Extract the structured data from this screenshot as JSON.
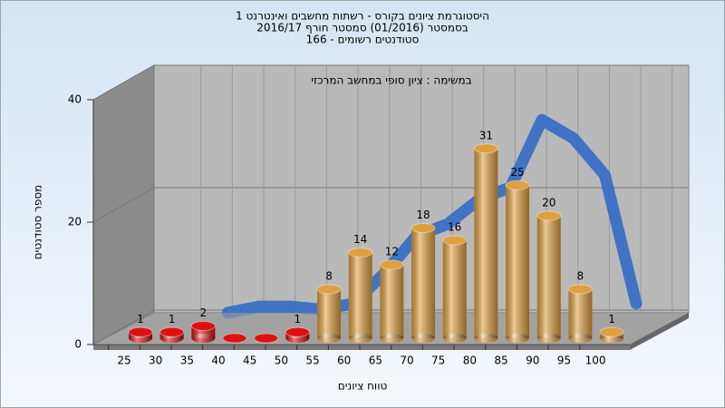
{
  "chart_data": {
    "type": "bar",
    "title": [
      "היסטוגרמת ציונים בקורס - רשתות מחשבים ואינטרנט 1",
      "בסמסטר  (01/2016)  סמסטר חורף 2016/17",
      "סטודנטים רשומים - 166"
    ],
    "annotation": "במשימה : ציון סופי במחשב המרכזי",
    "x_label": "טווח ציונים",
    "y_label": "מספר סטודנטים",
    "categories": [
      "25",
      "30",
      "35",
      "40",
      "45",
      "50",
      "55",
      "60",
      "65",
      "70",
      "75",
      "80",
      "85",
      "90",
      "95",
      "100"
    ],
    "values": [
      1,
      1,
      2,
      0,
      0,
      1,
      8,
      14,
      12,
      18,
      16,
      31,
      25,
      20,
      8,
      1
    ],
    "bar_colors": [
      "#e01010",
      "#e01010",
      "#e01010",
      "#e01010",
      "#e01010",
      "#e01010",
      "#e0a040",
      "#e0a040",
      "#e0a040",
      "#e0a040",
      "#e0a040",
      "#e0a040",
      "#e0a040",
      "#e0a040",
      "#e0a040",
      "#e0a040"
    ],
    "curve": {
      "color": "#3a6fc4",
      "values": [
        null,
        null,
        1.5,
        2.5,
        2.5,
        2,
        3,
        8,
        14,
        16,
        20,
        22,
        33,
        30,
        24,
        3
      ]
    },
    "ylim": [
      0,
      40
    ],
    "yticks": [
      0,
      20,
      40
    ],
    "grid": true
  }
}
